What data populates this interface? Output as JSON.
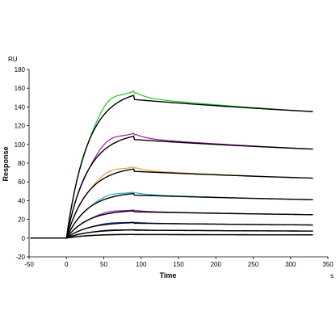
{
  "chart_data": {
    "type": "line",
    "title": "",
    "xlabel": "Time",
    "ylabel": "Response",
    "x_unit": "s",
    "y_unit": "RU",
    "xlim": [
      -50,
      350
    ],
    "ylim": [
      -20,
      180
    ],
    "x_ticks": [
      -50,
      0,
      50,
      100,
      150,
      200,
      250,
      300,
      350
    ],
    "y_ticks": [
      -20,
      0,
      20,
      40,
      60,
      80,
      100,
      120,
      140,
      160,
      180
    ],
    "x_tick_labels": [
      "-50",
      "0",
      "50",
      "100",
      "150",
      "200",
      "250",
      "300",
      "350"
    ],
    "y_tick_labels": [
      "-20",
      "0",
      "20",
      "40",
      "60",
      "80",
      "100",
      "120",
      "140",
      "160",
      "180"
    ],
    "grid": false,
    "legend": "none",
    "association_end": 90,
    "data_end": 330,
    "baseline_start": -48,
    "series": [
      {
        "color": "#22c422",
        "peak": 157,
        "end": 135
      },
      {
        "color": "#9b19a8",
        "peak": 112,
        "end": 95
      },
      {
        "color": "#e0a030",
        "peak": 76,
        "end": 64
      },
      {
        "color": "#2aa9c9",
        "peak": 49,
        "end": 41
      },
      {
        "color": "#9b19a8",
        "peak": 30,
        "end": 25
      },
      {
        "color": "#2233aa",
        "peak": 17,
        "end": 14
      },
      {
        "color": "#000000",
        "peak": 9,
        "end": 7.5
      },
      {
        "color": "#000000",
        "peak": 4,
        "end": 3.5
      }
    ],
    "fit_color": "#000000"
  }
}
